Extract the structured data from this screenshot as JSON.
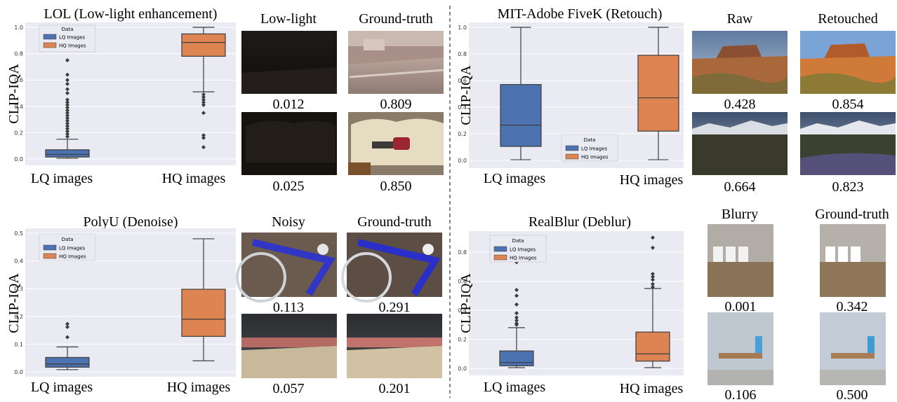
{
  "chart_data": [
    {
      "type": "box",
      "title": "LOL (Low-light enhancement)",
      "ylabel": "CLIP-IQA",
      "ylim": [
        0,
        1.0
      ],
      "yticks": [
        "0.0",
        "0.2",
        "0.4",
        "0.6",
        "0.8",
        "1.0"
      ],
      "categories": [
        "LQ images",
        "HQ images"
      ],
      "legend": {
        "title": "Data",
        "entries": [
          "LQ Images",
          "HQ Images"
        ],
        "placement": "top-left"
      },
      "boxes": [
        {
          "name": "LQ Images",
          "whislo": 0.005,
          "q1": 0.015,
          "med": 0.035,
          "q3": 0.07,
          "whishi": 0.15,
          "fliers": [
            0.17,
            0.19,
            0.21,
            0.23,
            0.25,
            0.27,
            0.29,
            0.31,
            0.33,
            0.35,
            0.37,
            0.39,
            0.41,
            0.43,
            0.45,
            0.5,
            0.53,
            0.57,
            0.6,
            0.64,
            0.75
          ]
        },
        {
          "name": "HQ Images",
          "whislo": 0.51,
          "q1": 0.78,
          "med": 0.885,
          "q3": 0.95,
          "whishi": 1.0,
          "fliers": [
            0.09,
            0.16,
            0.18,
            0.35,
            0.41,
            0.43,
            0.45,
            0.47,
            0.49
          ]
        }
      ]
    },
    {
      "type": "box",
      "title": "MIT-Adobe FiveK (Retouch)",
      "ylabel": "CLIP-IQA",
      "ylim": [
        0,
        1.0
      ],
      "yticks": [
        "0.0",
        "0.2",
        "0.4",
        "0.6",
        "0.8",
        "1.0"
      ],
      "categories": [
        "LQ images",
        "HQ images"
      ],
      "legend": {
        "title": "Data",
        "entries": [
          "LQ Images",
          "HQ Images"
        ],
        "placement": "lower-center"
      },
      "boxes": [
        {
          "name": "LQ Images",
          "whislo": 0.005,
          "q1": 0.105,
          "med": 0.265,
          "q3": 0.57,
          "whishi": 1.0,
          "fliers": []
        },
        {
          "name": "HQ Images",
          "whislo": 0.005,
          "q1": 0.22,
          "med": 0.47,
          "q3": 0.79,
          "whishi": 1.0,
          "fliers": []
        }
      ]
    },
    {
      "type": "box",
      "title": "PolyU (Denoise)",
      "ylabel": "CLIP-IQA",
      "ylim": [
        0,
        0.5
      ],
      "yticks": [
        "0.0",
        "0.1",
        "0.2",
        "0.3",
        "0.4",
        "0.5"
      ],
      "categories": [
        "LQ images",
        "HQ images"
      ],
      "legend": {
        "title": "Data",
        "entries": [
          "LQ Images",
          "HQ Images"
        ],
        "placement": "top-left"
      },
      "boxes": [
        {
          "name": "LQ Images",
          "whislo": 0.008,
          "q1": 0.017,
          "med": 0.028,
          "q3": 0.052,
          "whishi": 0.09,
          "fliers": [
            0.125,
            0.162,
            0.173
          ]
        },
        {
          "name": "HQ Images",
          "whislo": 0.04,
          "q1": 0.128,
          "med": 0.19,
          "q3": 0.298,
          "whishi": 0.48,
          "fliers": []
        }
      ]
    },
    {
      "type": "box",
      "title": "RealBlur (Deblur)",
      "ylabel": "CLIP-IQA",
      "ylim": [
        0,
        0.9
      ],
      "yticks": [
        "0.0",
        "0.2",
        "0.4",
        "0.6",
        "0.8"
      ],
      "categories": [
        "LQ images",
        "HQ images"
      ],
      "legend": {
        "title": "Data",
        "entries": [
          "LQ Images",
          "HQ Images"
        ],
        "placement": "top-left"
      },
      "boxes": [
        {
          "name": "LQ Images",
          "whislo": 0.005,
          "q1": 0.018,
          "med": 0.04,
          "q3": 0.12,
          "whishi": 0.28,
          "fliers": [
            0.3,
            0.31,
            0.33,
            0.35,
            0.38,
            0.44,
            0.5,
            0.54,
            0.73
          ]
        },
        {
          "name": "HQ Images",
          "whislo": 0.005,
          "q1": 0.05,
          "med": 0.1,
          "q3": 0.25,
          "whishi": 0.55,
          "fliers": [
            0.56,
            0.58,
            0.61,
            0.63,
            0.65,
            0.83,
            0.9
          ]
        }
      ]
    }
  ],
  "colors": {
    "lq": "#4c72b0",
    "hq": "#dd8452",
    "panel_bg": "#eaeaf2",
    "grid": "#ffffff"
  },
  "image_panels": [
    {
      "headers": [
        "Low-light",
        "Ground-truth"
      ],
      "scores": [
        [
          "0.012",
          "0.809"
        ],
        [
          "0.025",
          "0.850"
        ]
      ]
    },
    {
      "headers": [
        "Raw",
        "Retouched"
      ],
      "scores": [
        [
          "0.428",
          "0.854"
        ],
        [
          "0.664",
          "0.823"
        ]
      ]
    },
    {
      "headers": [
        "Noisy",
        "Ground-truth"
      ],
      "scores": [
        [
          "0.113",
          "0.291"
        ],
        [
          "0.057",
          "0.201"
        ]
      ]
    },
    {
      "headers": [
        "Blurry",
        "Ground-truth"
      ],
      "scores": [
        [
          "0.001",
          "0.342"
        ],
        [
          "0.106",
          "0.500"
        ]
      ]
    }
  ]
}
